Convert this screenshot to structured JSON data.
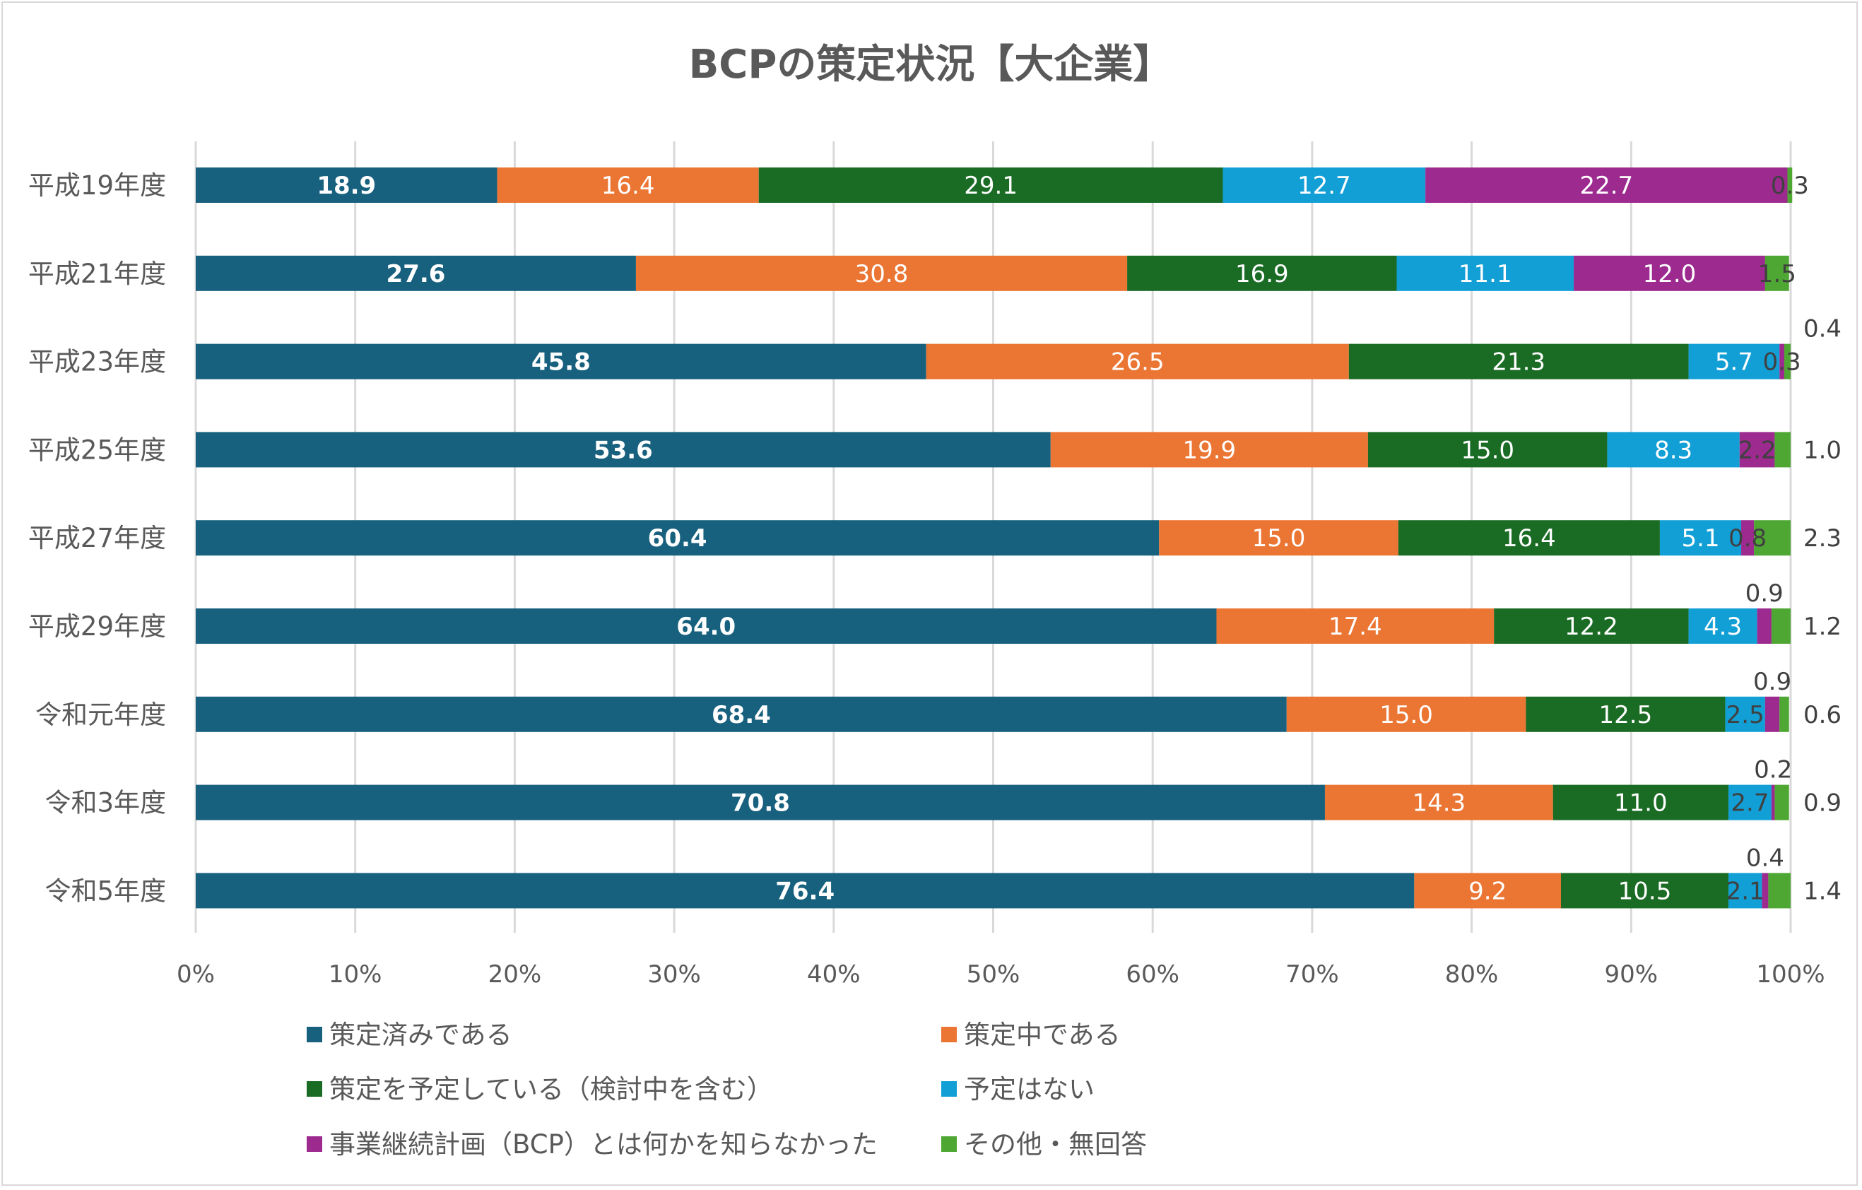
{
  "chart_data": {
    "type": "bar",
    "orientation": "horizontal",
    "stacked": "percent",
    "title": "BCPの策定状況【大企業】",
    "categories": [
      "平成19年度",
      "平成21年度",
      "平成23年度",
      "平成25年度",
      "平成27年度",
      "平成29年度",
      "令和元年度",
      "令和3年度",
      "令和5年度"
    ],
    "series": [
      {
        "name": "策定済みである",
        "color": "#17607e",
        "values": [
          18.9,
          27.6,
          45.8,
          53.6,
          60.4,
          64.0,
          68.4,
          70.8,
          76.4
        ]
      },
      {
        "name": "策定中である",
        "color": "#eb7533",
        "values": [
          16.4,
          30.8,
          26.5,
          19.9,
          15.0,
          17.4,
          15.0,
          14.3,
          9.2
        ]
      },
      {
        "name": "策定を予定している（検討中を含む）",
        "color": "#1a6b24",
        "values": [
          29.1,
          16.9,
          21.3,
          15.0,
          16.4,
          12.2,
          12.5,
          11.0,
          10.5
        ]
      },
      {
        "name": "予定はない",
        "color": "#129fd6",
        "values": [
          12.7,
          11.1,
          5.7,
          8.3,
          5.1,
          4.3,
          2.5,
          2.7,
          2.1
        ]
      },
      {
        "name": "事業継続計画（BCP）とは何かを知らなかった",
        "color": "#9c2a8f",
        "values": [
          22.7,
          12.0,
          0.3,
          2.2,
          0.8,
          0.9,
          0.9,
          0.2,
          0.4
        ]
      },
      {
        "name": "その他・無回答",
        "color": "#4ea733",
        "values": [
          0.3,
          1.5,
          0.4,
          1.0,
          2.3,
          1.2,
          0.6,
          0.9,
          1.4
        ]
      }
    ],
    "xlim": [
      0,
      100
    ],
    "xticks": [
      "0%",
      "10%",
      "20%",
      "30%",
      "40%",
      "50%",
      "60%",
      "70%",
      "80%",
      "90%",
      "100%"
    ],
    "grid": true,
    "legend_position": "bottom"
  }
}
